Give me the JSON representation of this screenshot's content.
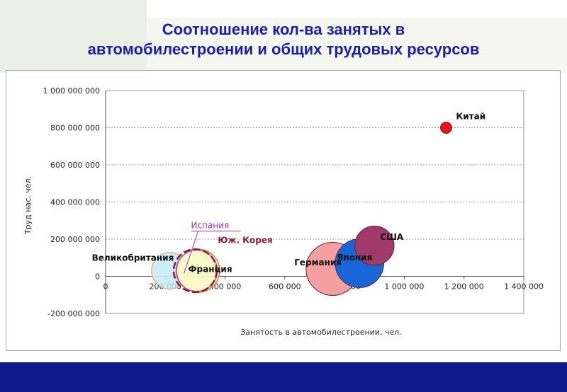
{
  "slide": {
    "title_line1": "Соотношение кол-ва занятых в",
    "title_line2": "автомобилестроении и общих трудовых ресурсов"
  },
  "colors": {
    "title": "#1a20a8",
    "bottom_bar": "#0f1b8a"
  },
  "chart_data": {
    "type": "bubble",
    "xlabel": "Занятость в автомобилестроении, чел.",
    "ylabel": "Труд нас. чел.",
    "xlim": [
      0,
      1400000
    ],
    "ylim": [
      -200000000,
      1000000000
    ],
    "x_ticks": [
      0,
      200000,
      400000,
      600000,
      800000,
      1000000,
      1200000,
      1400000
    ],
    "x_tick_labels": [
      "0",
      "200 000",
      "400 000",
      "600 000",
      "800 000",
      "1 000 000",
      "1 200 000",
      "1 400 000"
    ],
    "y_ticks": [
      -200000000,
      0,
      200000000,
      400000000,
      600000000,
      800000000,
      1000000000
    ],
    "y_tick_labels": [
      "-200 000 000",
      "0",
      "200 000 000",
      "400 000 000",
      "600 000 000",
      "800 000 000",
      "1 000 000 000"
    ],
    "grid": "horizontal dashed",
    "series": [
      {
        "name": "Китай",
        "x": 1140000,
        "y": 800000000,
        "size": 1,
        "color": "#ee1111",
        "label_color": "#111111"
      },
      {
        "name": "США",
        "x": 900000,
        "y": 165000000,
        "size": 3.0,
        "color": "#a03a6a",
        "label_color": "#111111"
      },
      {
        "name": "Германия",
        "x": 760000,
        "y": 40000000,
        "size": 5.5,
        "color": "#f4a0a0",
        "label_color": "#111111"
      },
      {
        "name": "Япония",
        "x": 850000,
        "y": 70000000,
        "size": 4.6,
        "color": "#1a66d8",
        "label_color": "#111111"
      },
      {
        "name": "Великобритания",
        "x": 215000,
        "y": 30000000,
        "size": 2.6,
        "color": "#c6ecf8",
        "label_color": "#111111"
      },
      {
        "name": "Франция",
        "x": 310000,
        "y": 30000000,
        "size": 3.6,
        "color": "#fdf9c4",
        "label_color": "#111111"
      },
      {
        "name": "Испания",
        "x": 305000,
        "y": 30000000,
        "size": 3.3,
        "color": "#b050b0",
        "label_color": "#9b3aa8"
      },
      {
        "name": "Юж. Корея",
        "x": 300000,
        "y": 30000000,
        "size": 3.6,
        "color": "#8b1a3a",
        "label_color": "#8b1a3a"
      }
    ]
  }
}
